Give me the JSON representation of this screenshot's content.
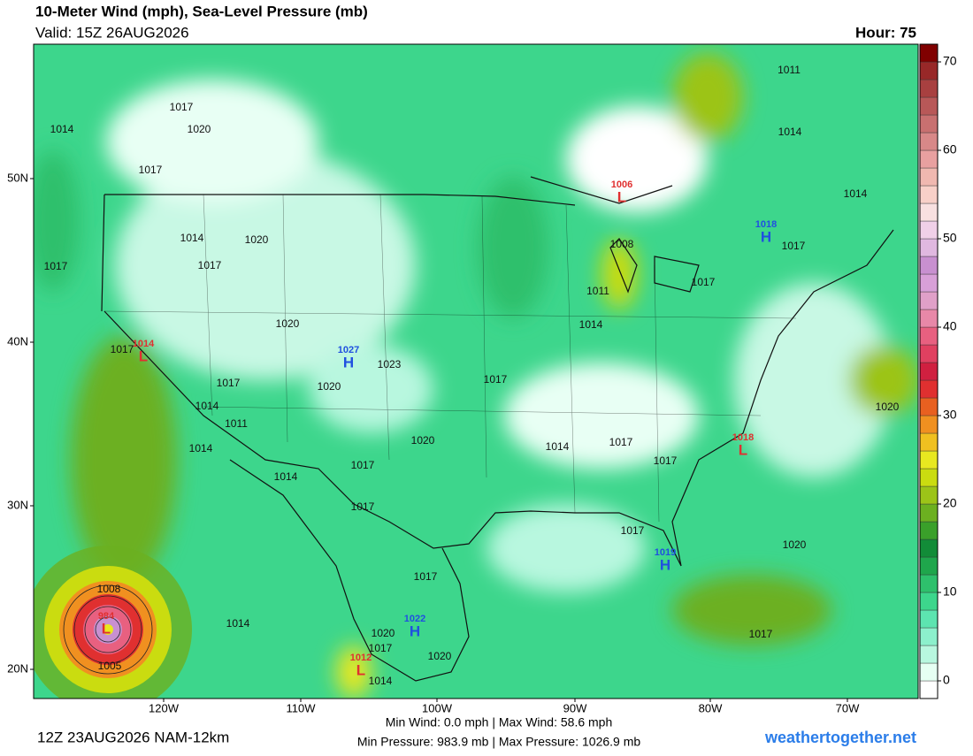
{
  "header": {
    "title": "10-Meter Wind (mph), Sea-Level Pressure (mb)",
    "valid": "Valid: 15Z 26AUG2026",
    "hour": "Hour: 75"
  },
  "colorbar": {
    "range": [
      -2,
      72
    ],
    "ticks": [
      0,
      10,
      20,
      30,
      40,
      50,
      60,
      70
    ],
    "colors": [
      "#ffffff",
      "#e6fff3",
      "#b8f7df",
      "#8cf0cc",
      "#5de4b0",
      "#3dd68c",
      "#2ec06c",
      "#1fa64c",
      "#128c38",
      "#3aa02a",
      "#6cb020",
      "#9cc418",
      "#cadc10",
      "#e8e820",
      "#f0c020",
      "#f09020",
      "#e86020",
      "#e03030",
      "#d02040",
      "#e04060",
      "#e86080",
      "#e888a8",
      "#e0a0c8",
      "#d8a0d8",
      "#c890d0",
      "#e0b8e0",
      "#f0d0e8",
      "#f8e0e0",
      "#f8d0c8",
      "#f0b8b0",
      "#e8a0a0",
      "#d88888",
      "#c87070",
      "#b85858",
      "#a84040",
      "#982828",
      "#800000"
    ]
  },
  "axes": {
    "lat_labels": [
      "50N",
      "40N",
      "30N",
      "20N"
    ],
    "lon_labels": [
      "120W",
      "110W",
      "100W",
      "90W",
      "80W",
      "70W"
    ]
  },
  "centers": [
    {
      "letter": "L",
      "pressure": 1006,
      "color": "#e03030"
    },
    {
      "letter": "H",
      "pressure": 1018,
      "color": "#2050e0"
    },
    {
      "letter": "L",
      "pressure": 1014,
      "color": "#e03030"
    },
    {
      "letter": "H",
      "pressure": 1027,
      "color": "#2050e0"
    },
    {
      "letter": "L",
      "pressure": 1018,
      "color": "#e03030"
    },
    {
      "letter": "H",
      "pressure": 1019,
      "color": "#2050e0"
    },
    {
      "letter": "H",
      "pressure": 1022,
      "color": "#2050e0"
    },
    {
      "letter": "L",
      "pressure": 1012,
      "color": "#e03030"
    },
    {
      "letter": "L",
      "pressure": 984,
      "color": "#e03030"
    }
  ],
  "isobar_labels": [
    1017,
    1014,
    1020,
    1017,
    1014,
    1020,
    1017,
    1017,
    1020,
    1017,
    1017,
    1020,
    1023,
    1014,
    1011,
    1014,
    1020,
    1017,
    1014,
    1017,
    1017,
    1014,
    1011,
    1008,
    1011,
    1014,
    1014,
    1017,
    1017,
    1017,
    1014,
    1017,
    1017,
    1020,
    1020,
    1017,
    1020,
    1017,
    1020,
    1014,
    1014,
    1008,
    1005,
    1017
  ],
  "footer": {
    "run": "12Z 23AUG2026 NAM-12km",
    "wind": "Min Wind:   0.0 mph | Max Wind: 58.6 mph",
    "pressure": "Min Pressure: 983.9 mb | Max Pressure: 1026.9 mb",
    "site": "weathertogether.net"
  }
}
